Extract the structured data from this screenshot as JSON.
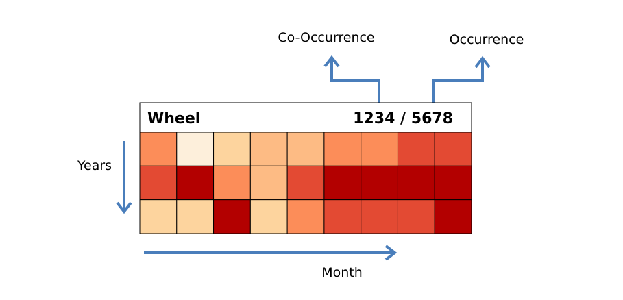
{
  "labels": {
    "co_occurrence": "Co-Occurrence",
    "occurrence": "Occurrence",
    "years": "Years",
    "month": "Month"
  },
  "header": {
    "term": "Wheel",
    "counts": "1234 / 5678"
  },
  "colors": {
    "arrow": "#4a7ebb",
    "grid_line": "#000000",
    "palette": [
      "#fdefdb",
      "#fdd49e",
      "#fdbb84",
      "#fc8d59",
      "#e34a33",
      "#b30000"
    ]
  },
  "heatmap": {
    "rows": 3,
    "columns": 9,
    "levels": [
      [
        3,
        0,
        1,
        2,
        2,
        3,
        3,
        4,
        4
      ],
      [
        4,
        5,
        3,
        2,
        4,
        5,
        5,
        5,
        5
      ],
      [
        1,
        1,
        5,
        1,
        3,
        4,
        4,
        4,
        5
      ]
    ]
  }
}
